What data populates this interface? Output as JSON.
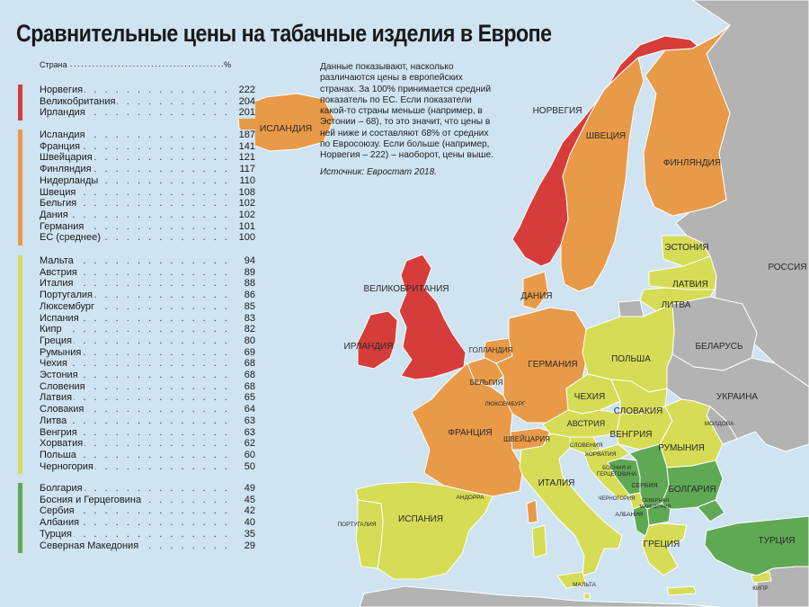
{
  "title": "Сравнительные цены на табачные изделия в Европе",
  "legend": {
    "header_country": "Страна",
    "header_unit": "%",
    "groups": [
      {
        "color": "#d63d3a",
        "items": [
          {
            "country": "Норвегия",
            "value": 222
          },
          {
            "country": "Великобритания",
            "value": 204
          },
          {
            "country": "Ирландия",
            "value": 201
          }
        ]
      },
      {
        "color": "#e89a48",
        "items": [
          {
            "country": "Исландия",
            "value": 187
          },
          {
            "country": "Франция",
            "value": 141
          },
          {
            "country": "Швейцария",
            "value": 121
          },
          {
            "country": "Финляндия",
            "value": 117
          },
          {
            "country": "Нидерланды",
            "value": 110
          },
          {
            "country": "Швеция",
            "value": 108
          },
          {
            "country": "Бельгия",
            "value": 102
          },
          {
            "country": "Дания",
            "value": 102
          },
          {
            "country": "Германия",
            "value": 101
          },
          {
            "country": "ЕС (среднее)",
            "value": 100
          }
        ]
      },
      {
        "color": "#d6dc55",
        "items": [
          {
            "country": "Мальта",
            "value": 94
          },
          {
            "country": "Австрия",
            "value": 89
          },
          {
            "country": "Италия",
            "value": 88
          },
          {
            "country": "Португалия",
            "value": 86
          },
          {
            "country": "Люксембург",
            "value": 85
          },
          {
            "country": "Испания",
            "value": 83
          },
          {
            "country": "Кипр",
            "value": 82
          },
          {
            "country": "Греция",
            "value": 80
          },
          {
            "country": "Румыния",
            "value": 69
          },
          {
            "country": "Чехия",
            "value": 68
          },
          {
            "country": "Эстония",
            "value": 68
          },
          {
            "country": "Словения",
            "value": 68
          },
          {
            "country": "Латвия",
            "value": 65
          },
          {
            "country": "Словакия",
            "value": 64
          },
          {
            "country": "Литва",
            "value": 63
          },
          {
            "country": "Венгрия",
            "value": 63
          },
          {
            "country": "Хорватия",
            "value": 62
          },
          {
            "country": "Польша",
            "value": 60
          },
          {
            "country": "Черногория",
            "value": 50
          }
        ]
      },
      {
        "color": "#5fa955",
        "items": [
          {
            "country": "Болгария",
            "value": 49
          },
          {
            "country": "Босния и Герцеговина",
            "value": 45
          },
          {
            "country": "Сербия",
            "value": 42
          },
          {
            "country": "Албания",
            "value": 40
          },
          {
            "country": "Турция",
            "value": 35
          },
          {
            "country": "Северная Македония",
            "value": 29
          }
        ]
      }
    ]
  },
  "note": "Данные показывают, насколько различаются цены в европейских странах. За 100% принимается средний показатель по ЕС. Если показатели какой-то страны меньше (например, в Эстонии – 68), то это значит, что цены в ней ниже и составляют 68% от средних по Евросоюзу. Если больше (например, Норвегия – 222) – наоборот, цены выше.",
  "source": "Источник: Евростат 2018.",
  "map_labels": {
    "iceland": "ИСЛАНДИЯ",
    "norway": "НОРВЕГИЯ",
    "sweden": "ШВЕЦИЯ",
    "finland": "ФИНЛЯНДИЯ",
    "russia": "РОССИЯ",
    "estonia": "ЭСТОНИЯ",
    "latvia": "ЛАТВИЯ",
    "lithuania": "ЛИТВА",
    "belarus": "БЕЛАРУСЬ",
    "ukraine": "УКРАИНА",
    "moldova": "МОЛДОВА",
    "uk": "ВЕЛИКОБРИТАНИЯ",
    "ireland": "ИРЛАНДИЯ",
    "denmark": "ДАНИЯ",
    "netherlands": "ГОЛЛАНДИЯ",
    "belgium": "БЕЛЬГИЯ",
    "luxembourg": "ЛЮКСЕМБУРГ",
    "germany": "ГЕРМАНИЯ",
    "poland": "ПОЛЬША",
    "czech": "ЧЕХИЯ",
    "slovakia": "СЛОВАКИЯ",
    "austria": "АВСТРИЯ",
    "hungary": "ВЕНГРИЯ",
    "romania": "РУМЫНИЯ",
    "france": "ФРАНЦИЯ",
    "switzerland": "ШВЕЙЦАРИЯ",
    "slovenia": "СЛОВЕНИЯ",
    "croatia": "ХОРВАТИЯ",
    "bosnia_1": "БОСНИЯ И",
    "bosnia_2": "ГЕРЦЕГОВИНА",
    "serbia": "СЕРБИЯ",
    "montenegro": "ЧЕРНОГОРИЯ",
    "albania": "АЛБАНИЯ",
    "macedonia_1": "СЕВЕРНАЯ",
    "macedonia_2": "МАКЕДОНИЯ",
    "bulgaria": "БОЛГАРИЯ",
    "italy": "ИТАЛИЯ",
    "andorra": "АНДОРРА",
    "spain": "ИСПАНИЯ",
    "portugal": "ПОРТУГАЛИЯ",
    "greece": "ГРЕЦИЯ",
    "turkey": "ТУРЦИЯ",
    "malta": "МАЛЬТА",
    "cyprus": "КИПР"
  },
  "colors": {
    "sea": "#cfe3f1",
    "non_data": "#b3b3b3",
    "red": "#d63d3a",
    "orange": "#e89a48",
    "yellow": "#d6dc55",
    "green": "#5fa955",
    "border": "#ffffff"
  }
}
